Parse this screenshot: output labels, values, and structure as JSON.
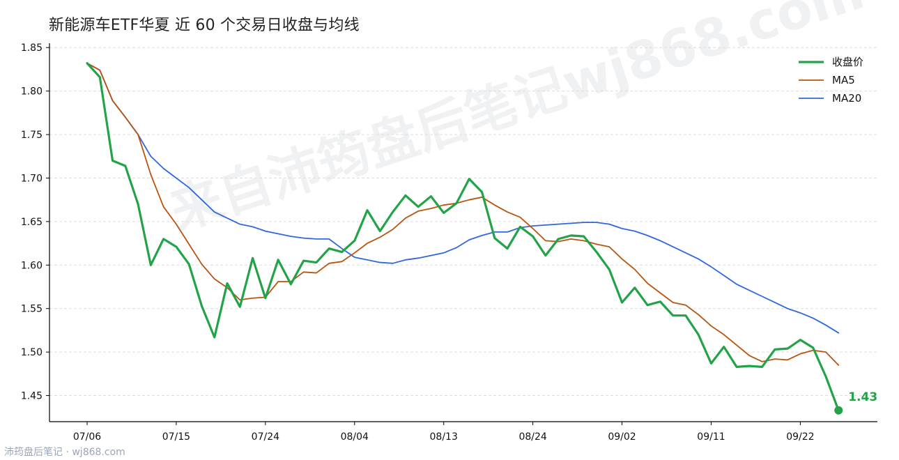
{
  "title": "新能源车ETF华夏 近 60 个交易日收盘与均线",
  "watermark": "来自沛筠盘后笔记wj868.com",
  "footer": "沛筠盘后笔记 · wj868.com",
  "colors": {
    "close": "#22a348",
    "ma5": "#b8540f",
    "ma20": "#2f67de",
    "grid": "#dddddd",
    "axis": "#000000"
  },
  "chart_data": {
    "type": "line",
    "title": "新能源车ETF华夏 近 60 个交易日收盘与均线",
    "ylim": [
      1.42,
      1.855
    ],
    "yticks": [
      1.45,
      1.5,
      1.55,
      1.6,
      1.65,
      1.7,
      1.75,
      1.8,
      1.85
    ],
    "ytick_labels": [
      "1.45",
      "1.50",
      "1.55",
      "1.60",
      "1.65",
      "1.70",
      "1.75",
      "1.80",
      "1.85"
    ],
    "xtick_labels": [
      {
        "index": 0,
        "label": "07/06"
      },
      {
        "index": 7,
        "label": "07/15"
      },
      {
        "index": 14,
        "label": "07/24"
      },
      {
        "index": 21,
        "label": "08/04"
      },
      {
        "index": 28,
        "label": "08/13"
      },
      {
        "index": 35,
        "label": "08/24"
      },
      {
        "index": 42,
        "label": "09/02"
      },
      {
        "index": 49,
        "label": "09/11"
      },
      {
        "index": 56,
        "label": "09/22"
      }
    ],
    "grid": "horizontal-dashed",
    "legend_position": "top-right",
    "series": [
      {
        "name": "收盘价",
        "color": "#22a348",
        "values": [
          1.832,
          1.816,
          1.72,
          1.714,
          1.67,
          1.6,
          1.63,
          1.621,
          1.601,
          1.553,
          1.517,
          1.579,
          1.552,
          1.608,
          1.562,
          1.606,
          1.578,
          1.605,
          1.603,
          1.619,
          1.615,
          1.628,
          1.663,
          1.639,
          1.661,
          1.68,
          1.667,
          1.679,
          1.66,
          1.671,
          1.699,
          1.684,
          1.631,
          1.619,
          1.644,
          1.633,
          1.611,
          1.63,
          1.634,
          1.633,
          1.615,
          1.595,
          1.557,
          1.574,
          1.554,
          1.558,
          1.542,
          1.542,
          1.52,
          1.487,
          1.506,
          1.483,
          1.484,
          1.483,
          1.503,
          1.504,
          1.514,
          1.505,
          1.472,
          1.433
        ]
      },
      {
        "name": "MA5",
        "color": "#b8540f",
        "values": [
          1.832,
          1.824,
          1.789,
          1.77,
          1.75,
          1.704,
          1.667,
          1.647,
          1.624,
          1.601,
          1.584,
          1.574,
          1.56,
          1.562,
          1.563,
          1.581,
          1.581,
          1.592,
          1.591,
          1.602,
          1.604,
          1.614,
          1.625,
          1.632,
          1.641,
          1.654,
          1.662,
          1.665,
          1.669,
          1.671,
          1.675,
          1.678,
          1.669,
          1.661,
          1.655,
          1.642,
          1.628,
          1.627,
          1.63,
          1.628,
          1.624,
          1.621,
          1.607,
          1.595,
          1.579,
          1.568,
          1.557,
          1.554,
          1.543,
          1.53,
          1.52,
          1.508,
          1.496,
          1.489,
          1.492,
          1.491,
          1.498,
          1.502,
          1.5,
          1.485
        ]
      },
      {
        "name": "MA20",
        "color": "#2f67de",
        "values": [
          1.832,
          1.824,
          1.789,
          1.77,
          1.75,
          1.725,
          1.711,
          1.7,
          1.689,
          1.675,
          1.661,
          1.654,
          1.647,
          1.644,
          1.639,
          1.636,
          1.633,
          1.631,
          1.63,
          1.63,
          1.619,
          1.609,
          1.606,
          1.603,
          1.602,
          1.606,
          1.608,
          1.611,
          1.614,
          1.62,
          1.629,
          1.634,
          1.638,
          1.638,
          1.643,
          1.645,
          1.646,
          1.647,
          1.648,
          1.649,
          1.649,
          1.647,
          1.642,
          1.639,
          1.634,
          1.628,
          1.621,
          1.614,
          1.607,
          1.598,
          1.588,
          1.578,
          1.571,
          1.564,
          1.557,
          1.55,
          1.545,
          1.539,
          1.531,
          1.522
        ]
      }
    ],
    "annotations": [
      {
        "text": "1.43",
        "series": "收盘价",
        "index": 59
      }
    ]
  }
}
